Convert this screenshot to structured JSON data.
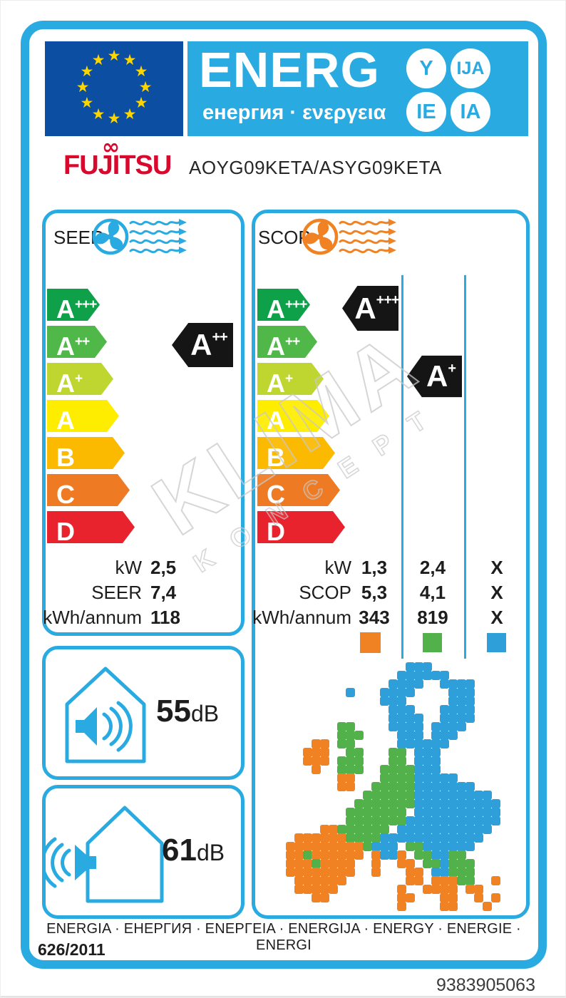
{
  "header": {
    "energ": "ENERG",
    "subtitle": "енергия · ενεργεια",
    "circles": [
      "Y",
      "IJA",
      "IE",
      "IA"
    ],
    "flag_star": "★",
    "flag_star_count": 12
  },
  "brand": {
    "name": "FUJITSU",
    "swirl": "∞",
    "model": "AOYG09KETA/ASYG09KETA"
  },
  "scale": {
    "grades": [
      {
        "letter": "A",
        "sup": "+++",
        "color": "#0FA04A"
      },
      {
        "letter": "A",
        "sup": "++",
        "color": "#4FB848"
      },
      {
        "letter": "A",
        "sup": "+",
        "color": "#BED62F"
      },
      {
        "letter": "A",
        "sup": "",
        "color": "#FFED00"
      },
      {
        "letter": "B",
        "sup": "",
        "color": "#FBB900"
      },
      {
        "letter": "C",
        "sup": "",
        "color": "#EE7A23"
      },
      {
        "letter": "D",
        "sup": "",
        "color": "#E8232D"
      }
    ]
  },
  "cooling": {
    "title": "SEER",
    "rating": {
      "letter": "A",
      "sup": "++"
    },
    "values": [
      {
        "label": "kW",
        "value": "2,5"
      },
      {
        "label": "SEER",
        "value": "7,4"
      },
      {
        "label": "kWh/annum",
        "value": "118"
      }
    ]
  },
  "heating": {
    "title": "SCOP",
    "ratings": [
      {
        "letter": "A",
        "sup": "+++"
      },
      {
        "letter": "A",
        "sup": "+"
      }
    ],
    "rows": [
      {
        "label": "kW",
        "cols": [
          "1,3",
          "2,4",
          "X"
        ]
      },
      {
        "label": "SCOP",
        "cols": [
          "5,3",
          "4,1",
          "X"
        ]
      },
      {
        "label": "kWh/annum",
        "cols": [
          "343",
          "819",
          "X"
        ]
      }
    ],
    "zones": [
      {
        "name": "warmer",
        "color": "#F08223"
      },
      {
        "name": "average",
        "color": "#52B14A"
      },
      {
        "name": "colder",
        "color": "#2E9FD8"
      }
    ]
  },
  "noise": {
    "indoor": {
      "value": "55",
      "unit": "dB"
    },
    "outdoor": {
      "value": "61",
      "unit": "dB"
    }
  },
  "footer": {
    "energy_words": "ENERGIA · ЕНЕРГИЯ · ΕΝΕΡΓΕΙΑ · ENERGIJA · ENERGY · ENERGIE · ENERGI",
    "regulation": "626/2011"
  },
  "serial": "9383905063",
  "watermark": {
    "line1": "KLIMA",
    "line2": "KONCEPT"
  },
  "colors": {
    "accent_blue": "#29ABE2",
    "flag_blue": "#0B4EA2",
    "brand_red": "#D9092E"
  },
  "map": {
    "cell": 12,
    "colors": {
      "b": "#2E9FD8",
      "g": "#52B14A",
      "o": "#F08223"
    },
    "grid": [
      "...............bbb...........",
      "..............bbbbbb.........",
      ".............bbbb..bbbb......",
      "........b...bbbb....bbb......",
      "............bbb.....bbb......",
      ".............bbb...bbbb......",
      ".............bbbb..bbbb......",
      ".......gg....bbbb.bbbb.......",
      ".......ggg....bbb.bbb........",
      "....oo.gg.....bbbbbb.........",
      "...ooo..gg...gg.bbb..........",
      "...ooo.ggg...gg.bbb..........",
      "....o..ggg..ggggbbb..........",
      ".......oo...ggggbbbbb........",
      ".......oo..gggggbbbbbbb......",
      "..........ggggggbbbbbbbbb....",
      ".........gggggggbbbbbbbbbb...",
      "........ggggggg.bbbbbbbbbb...",
      "........gggggggbbbbbbbbbbb...",
      ".....oogggggg.bbbbbbbbbbb....",
      "..ooooooggggbbbbbbbbbbbb.....",
      ".ooooooooogbbb.ggbbbbbb......",
      ".oogoooooo.obbo.ggbbgg.......",
      ".ooogoooo..o..oo.ggbggg......",
      ".oooooooo..o...oo.bbggg......",
      "..oooooo.......oo.ooogg..o...",
      "..ooooo.......o..oooo.oo.....",
      "....oo........oo...oo..o.o...",
      "..............o....oo...o....",
      "............................."
    ]
  }
}
